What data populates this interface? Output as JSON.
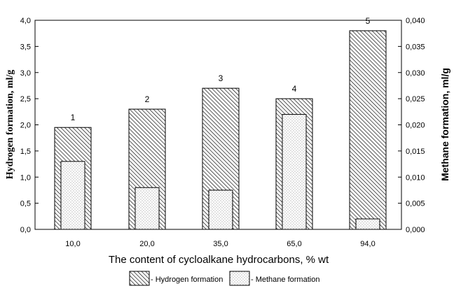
{
  "chart_data": {
    "type": "bar",
    "categories": [
      "10,0",
      "20,0",
      "35,0",
      "65,0",
      "94,0"
    ],
    "bar_labels": [
      "1",
      "2",
      "3",
      "4",
      "5"
    ],
    "series": [
      {
        "name": "- Hydrogen formation",
        "axis": "left",
        "values": [
          1.95,
          2.3,
          2.7,
          2.5,
          3.8
        ],
        "fill": "hatch"
      },
      {
        "name": "- Methane formation",
        "axis": "right",
        "values": [
          0.013,
          0.008,
          0.0075,
          0.022,
          0.002
        ],
        "fill": "dots"
      }
    ],
    "xlabel": "The content of cycloalkane hydrocarbons, % wt",
    "ylabel_left": "Hydrogen formation, ml/g",
    "ylabel_right": "Methane formation, ml/g",
    "ylim_left": [
      0,
      4
    ],
    "ylim_right": [
      0,
      0.04
    ],
    "yticks_left": [
      "0,0",
      "0,5",
      "1,0",
      "1,5",
      "2,0",
      "2,5",
      "3,0",
      "3,5",
      "4,0"
    ],
    "yticks_right": [
      "0,000",
      "0,005",
      "0,010",
      "0,015",
      "0,020",
      "0,025",
      "0,030",
      "0,035",
      "0,040"
    ],
    "grid": false,
    "legend_position": "bottom"
  }
}
